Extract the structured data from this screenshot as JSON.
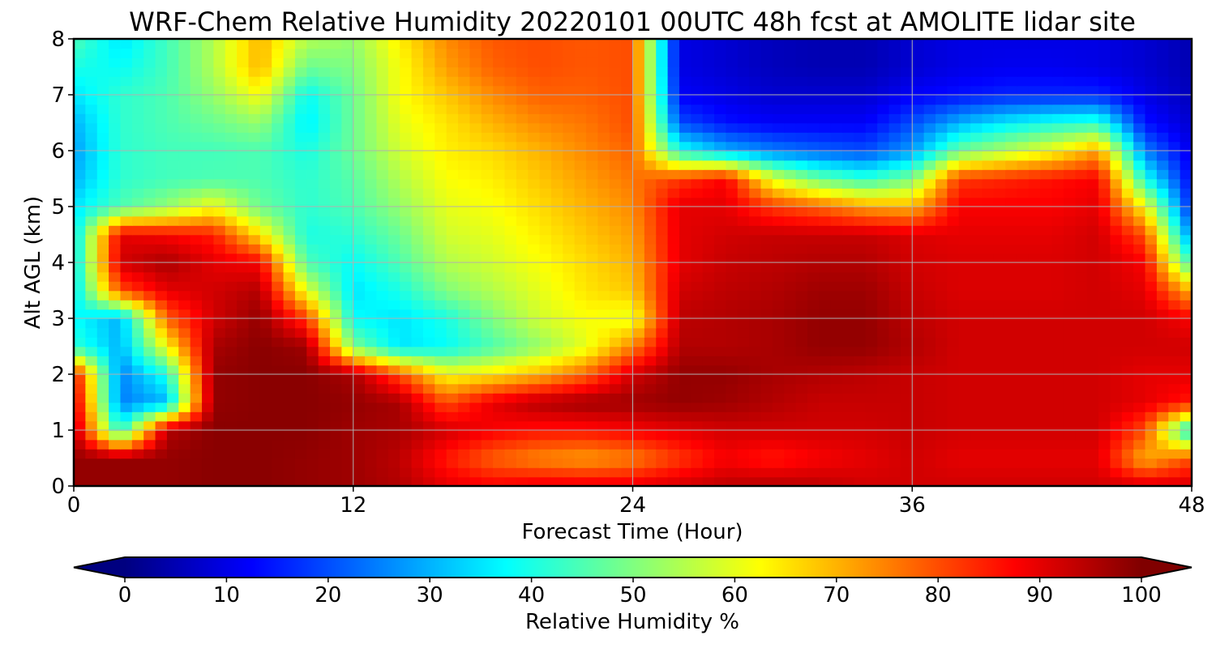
{
  "chart_data": {
    "type": "heatmap",
    "title": "WRF-Chem Relative Humidity 20220101 00UTC 48h fcst at AMOLITE lidar site",
    "xlabel": "Forecast Time (Hour)",
    "ylabel": "Alt AGL (km)",
    "xlim": [
      0,
      48
    ],
    "ylim": [
      0,
      8
    ],
    "x_ticks": [
      0,
      12,
      24,
      36,
      48
    ],
    "y_ticks": [
      0,
      1,
      2,
      3,
      4,
      5,
      6,
      7,
      8
    ],
    "grid": true,
    "colormap": "jet",
    "colorbar": {
      "label": "Relative Humidity %",
      "range": [
        0,
        100
      ],
      "ticks": [
        0,
        10,
        20,
        30,
        40,
        50,
        60,
        70,
        80,
        90,
        100
      ],
      "extend": "both",
      "orientation": "horizontal"
    },
    "x": [
      0,
      2,
      4,
      6,
      8,
      10,
      12,
      14,
      16,
      18,
      20,
      22,
      24,
      26,
      28,
      30,
      32,
      34,
      36,
      38,
      40,
      42,
      44,
      46,
      48
    ],
    "y": [
      0,
      0.5,
      1,
      1.5,
      2,
      2.5,
      3,
      3.5,
      4,
      4.5,
      5,
      5.5,
      6,
      6.5,
      7,
      7.5,
      8
    ],
    "z": [
      [
        98,
        98,
        98,
        99,
        99,
        98,
        97,
        95,
        90,
        88,
        90,
        90,
        90,
        92,
        94,
        95,
        94,
        92,
        92,
        92,
        92,
        92,
        92,
        92,
        92
      ],
      [
        98,
        98,
        98,
        99,
        99,
        98,
        97,
        94,
        85,
        78,
        74,
        72,
        75,
        82,
        88,
        85,
        88,
        90,
        92,
        90,
        90,
        90,
        90,
        70,
        80
      ],
      [
        95,
        40,
        95,
        99,
        99,
        99,
        97,
        96,
        92,
        88,
        86,
        86,
        88,
        90,
        92,
        92,
        92,
        92,
        93,
        92,
        92,
        92,
        92,
        80,
        35
      ],
      [
        92,
        25,
        30,
        98,
        99,
        99,
        98,
        96,
        80,
        90,
        95,
        97,
        97,
        98,
        97,
        95,
        93,
        93,
        93,
        92,
        92,
        92,
        92,
        90,
        85
      ],
      [
        88,
        25,
        40,
        98,
        99,
        99,
        96,
        80,
        62,
        65,
        70,
        78,
        92,
        98,
        98,
        96,
        95,
        94,
        93,
        92,
        92,
        92,
        92,
        90,
        90
      ],
      [
        42,
        30,
        62,
        96,
        99,
        97,
        50,
        35,
        38,
        45,
        52,
        60,
        75,
        95,
        95,
        96,
        98,
        98,
        95,
        92,
        92,
        92,
        92,
        92,
        92
      ],
      [
        38,
        30,
        78,
        92,
        98,
        82,
        38,
        35,
        40,
        50,
        58,
        62,
        60,
        94,
        95,
        96,
        98,
        98,
        94,
        92,
        92,
        92,
        92,
        92,
        88
      ],
      [
        35,
        80,
        90,
        92,
        95,
        60,
        35,
        40,
        50,
        55,
        60,
        65,
        68,
        92,
        94,
        95,
        97,
        97,
        93,
        91,
        91,
        91,
        92,
        90,
        70
      ],
      [
        35,
        92,
        96,
        90,
        88,
        45,
        38,
        45,
        55,
        58,
        62,
        66,
        70,
        90,
        93,
        94,
        95,
        95,
        92,
        91,
        91,
        91,
        92,
        88,
        42
      ],
      [
        35,
        90,
        88,
        85,
        65,
        40,
        42,
        48,
        58,
        60,
        64,
        68,
        72,
        90,
        92,
        93,
        93,
        93,
        91,
        90,
        90,
        90,
        92,
        80,
        25
      ],
      [
        35,
        45,
        52,
        62,
        48,
        42,
        45,
        52,
        60,
        62,
        66,
        70,
        74,
        90,
        90,
        82,
        78,
        72,
        70,
        88,
        88,
        88,
        90,
        62,
        15
      ],
      [
        30,
        42,
        44,
        45,
        45,
        42,
        46,
        55,
        62,
        64,
        68,
        72,
        76,
        82,
        88,
        60,
        48,
        42,
        50,
        82,
        84,
        86,
        88,
        40,
        12
      ],
      [
        28,
        42,
        44,
        44,
        45,
        40,
        48,
        58,
        64,
        66,
        70,
        74,
        78,
        40,
        30,
        25,
        22,
        20,
        28,
        48,
        55,
        62,
        72,
        25,
        10
      ],
      [
        30,
        42,
        45,
        48,
        52,
        36,
        48,
        60,
        65,
        70,
        74,
        76,
        80,
        20,
        14,
        12,
        12,
        12,
        20,
        30,
        36,
        40,
        42,
        14,
        8
      ],
      [
        35,
        42,
        45,
        52,
        62,
        38,
        48,
        62,
        68,
        74,
        78,
        78,
        80,
        12,
        10,
        8,
        8,
        8,
        12,
        14,
        16,
        16,
        16,
        10,
        6
      ],
      [
        40,
        38,
        44,
        55,
        70,
        48,
        50,
        62,
        72,
        78,
        80,
        79,
        80,
        10,
        8,
        6,
        5,
        5,
        8,
        10,
        11,
        11,
        10,
        8,
        5
      ],
      [
        45,
        35,
        44,
        55,
        70,
        55,
        52,
        64,
        74,
        79,
        80,
        79,
        80,
        10,
        8,
        6,
        5,
        5,
        8,
        10,
        10,
        10,
        10,
        8,
        5
      ]
    ]
  }
}
